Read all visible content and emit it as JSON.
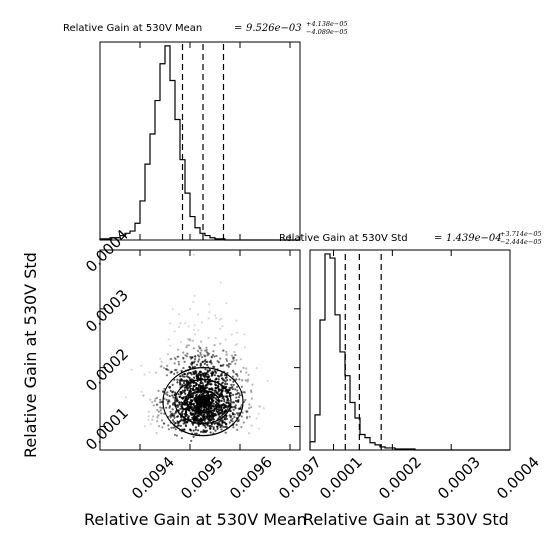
{
  "chart_data": [
    {
      "type": "histogram",
      "panel": "top-left",
      "title": "Relative Gain at 530V Mean",
      "title_stat": "9.526e−03",
      "title_err_plus": "+4.138e−05",
      "title_err_minus": "−4.089e−05",
      "xlim": [
        0.00932,
        0.00972
      ],
      "bin_edges_start": 0.00932,
      "bin_width": 1e-05,
      "counts": [
        1,
        1,
        2,
        2,
        4,
        6,
        8,
        15,
        35,
        68,
        95,
        125,
        158,
        174,
        143,
        108,
        72,
        42,
        21,
        11,
        6,
        4,
        2,
        1,
        1,
        0,
        0,
        0,
        0,
        0,
        0,
        0,
        0,
        0,
        0,
        0,
        0,
        0,
        0,
        0
      ],
      "quantiles": [
        0.009485,
        0.009526,
        0.009567
      ]
    },
    {
      "type": "histogram",
      "panel": "bottom-right",
      "title": "Relative Gain at 530V Std",
      "title_stat": "1.439e−04",
      "title_err_plus": "+3.714e−05",
      "title_err_minus": "−2.444e−05",
      "xlim": [
        6e-05,
        0.0004
      ],
      "bin_edges_start": 6e-05,
      "bin_width": 8.5e-06,
      "counts": [
        8,
        34,
        126,
        190,
        186,
        131,
        95,
        72,
        46,
        31,
        15,
        12,
        7,
        5,
        3,
        2,
        2,
        1,
        1,
        1,
        1,
        0,
        0,
        0,
        0,
        0,
        0,
        0,
        0,
        0
      ],
      "quantiles": [
        0.00012,
        0.0001439,
        0.000181
      ],
      "xticks": [
        "0.0001",
        "0.0002",
        "0.0003",
        "0.0004"
      ],
      "xlabel": "Relative Gain at 530V Std"
    },
    {
      "type": "scatter",
      "panel": "bottom-left",
      "xlim": [
        0.00932,
        0.00972
      ],
      "ylim": [
        6e-05,
        0.0004
      ],
      "center": [
        0.009526,
        0.0001439
      ],
      "spread": [
        4.1e-05,
        3.1e-05
      ],
      "n_points": 1500,
      "xticks": [
        "0.0094",
        "0.0095",
        "0.0096",
        "0.0097"
      ],
      "yticks": [
        "0.0001",
        "0.0002",
        "0.0003",
        "0.0004"
      ],
      "xlabel": "Relative Gain at 530V Mean",
      "ylabel": "Relative Gain at 530V Std"
    }
  ]
}
